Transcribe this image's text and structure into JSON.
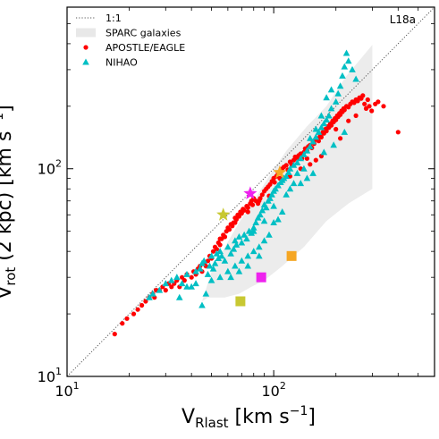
{
  "chart_data": {
    "type": "scatter",
    "xscale": "log",
    "yscale": "log",
    "xlim": [
      10,
      600
    ],
    "ylim": [
      10,
      600
    ],
    "x_ticks": [
      {
        "value": 10,
        "label": "10",
        "exp": "1"
      },
      {
        "value": 100,
        "label": "10",
        "exp": "2"
      }
    ],
    "y_ticks": [
      {
        "value": 10,
        "label": "10",
        "exp": "1"
      },
      {
        "value": 100,
        "label": "10",
        "exp": "2"
      }
    ],
    "xlabel": {
      "main": "V",
      "sub": "Rlast",
      "unit": " [km s",
      "sup": "−1",
      "close": "]"
    },
    "ylabel": {
      "main": "V",
      "sub": "rot",
      "unit": " (2 kpc) [km s",
      "sup": "−1",
      "close": "]"
    },
    "corner_label": "L18a",
    "legend": {
      "position": "top-left",
      "entries": [
        {
          "label": "1:1",
          "marker": "dotted-line",
          "color": "#555555"
        },
        {
          "label": "SPARC galaxies",
          "marker": "shaded-band",
          "color": "#e8e8e8"
        },
        {
          "label": "APOSTLE/EAGLE",
          "marker": "circle",
          "color": "#ff0000"
        },
        {
          "label": "NIHAO",
          "marker": "triangle",
          "color": "#00bfc4"
        }
      ]
    },
    "one_to_one_line": {
      "x": [
        10,
        600
      ],
      "y": [
        10,
        600
      ],
      "color": "#555555"
    },
    "sparc_band": {
      "color": "#ececec",
      "polygon": [
        [
          45,
          23
        ],
        [
          48,
          24
        ],
        [
          58,
          24
        ],
        [
          68,
          25
        ],
        [
          78,
          27
        ],
        [
          90,
          29
        ],
        [
          110,
          34
        ],
        [
          140,
          42
        ],
        [
          180,
          56
        ],
        [
          230,
          68
        ],
        [
          300,
          80
        ],
        [
          300,
          395
        ],
        [
          225,
          280
        ],
        [
          180,
          200
        ],
        [
          145,
          160
        ],
        [
          115,
          122
        ],
        [
          95,
          92
        ],
        [
          80,
          70
        ],
        [
          68,
          55
        ],
        [
          58,
          42
        ],
        [
          50,
          32
        ]
      ]
    },
    "series": [
      {
        "name": "APOSTLE/EAGLE",
        "marker": "circle",
        "color": "#ff0000",
        "points": [
          [
            17,
            16
          ],
          [
            18.5,
            18
          ],
          [
            19.5,
            19
          ],
          [
            21,
            20
          ],
          [
            22,
            21
          ],
          [
            23,
            22
          ],
          [
            24,
            23
          ],
          [
            25,
            24
          ],
          [
            26,
            25
          ],
          [
            26.5,
            24
          ],
          [
            27,
            26
          ],
          [
            28,
            26
          ],
          [
            29,
            27
          ],
          [
            30,
            26
          ],
          [
            31,
            28
          ],
          [
            32,
            27
          ],
          [
            33,
            28
          ],
          [
            34,
            29
          ],
          [
            35,
            27
          ],
          [
            36,
            30
          ],
          [
            37,
            29
          ],
          [
            38,
            31
          ],
          [
            40,
            30
          ],
          [
            41,
            32
          ],
          [
            42,
            31
          ],
          [
            43,
            33
          ],
          [
            44,
            34
          ],
          [
            45,
            32
          ],
          [
            46,
            35
          ],
          [
            47,
            34
          ],
          [
            48,
            36
          ],
          [
            49,
            38
          ],
          [
            50,
            37
          ],
          [
            51,
            40
          ],
          [
            52,
            42
          ],
          [
            53,
            41
          ],
          [
            54,
            44
          ],
          [
            55,
            43
          ],
          [
            56,
            46
          ],
          [
            57,
            48
          ],
          [
            58,
            47
          ],
          [
            59,
            50
          ],
          [
            60,
            52
          ],
          [
            61,
            51
          ],
          [
            62,
            54
          ],
          [
            63,
            53
          ],
          [
            64,
            55
          ],
          [
            65,
            58
          ],
          [
            66,
            57
          ],
          [
            67,
            60
          ],
          [
            68,
            59
          ],
          [
            69,
            62
          ],
          [
            70,
            61
          ],
          [
            71,
            64
          ],
          [
            72,
            63
          ],
          [
            74,
            66
          ],
          [
            75,
            65
          ],
          [
            77,
            68
          ],
          [
            78,
            70
          ],
          [
            79,
            67
          ],
          [
            80,
            72
          ],
          [
            82,
            70
          ],
          [
            84,
            68
          ],
          [
            86,
            72
          ],
          [
            88,
            75
          ],
          [
            90,
            78
          ],
          [
            92,
            80
          ],
          [
            94,
            82
          ],
          [
            96,
            84
          ],
          [
            98,
            87
          ],
          [
            100,
            90
          ],
          [
            101,
            86
          ],
          [
            103,
            92
          ],
          [
            105,
            95
          ],
          [
            107,
            90
          ],
          [
            108,
            98
          ],
          [
            110,
            100
          ],
          [
            112,
            102
          ],
          [
            115,
            104
          ],
          [
            117,
            99
          ],
          [
            120,
            108
          ],
          [
            122,
            105
          ],
          [
            125,
            110
          ],
          [
            127,
            114
          ],
          [
            130,
            112
          ],
          [
            132,
            116
          ],
          [
            135,
            118
          ],
          [
            137,
            112
          ],
          [
            140,
            120
          ],
          [
            142,
            125
          ],
          [
            145,
            122
          ],
          [
            147,
            128
          ],
          [
            150,
            130
          ],
          [
            153,
            126
          ],
          [
            155,
            135
          ],
          [
            157,
            132
          ],
          [
            160,
            138
          ],
          [
            163,
            140
          ],
          [
            165,
            136
          ],
          [
            168,
            145
          ],
          [
            170,
            142
          ],
          [
            173,
            150
          ],
          [
            175,
            148
          ],
          [
            178,
            155
          ],
          [
            180,
            152
          ],
          [
            183,
            160
          ],
          [
            185,
            158
          ],
          [
            188,
            165
          ],
          [
            190,
            162
          ],
          [
            193,
            170
          ],
          [
            195,
            168
          ],
          [
            198,
            175
          ],
          [
            200,
            172
          ],
          [
            203,
            180
          ],
          [
            205,
            178
          ],
          [
            208,
            185
          ],
          [
            210,
            182
          ],
          [
            213,
            190
          ],
          [
            215,
            188
          ],
          [
            218,
            195
          ],
          [
            220,
            192
          ],
          [
            225,
            200
          ],
          [
            230,
            198
          ],
          [
            235,
            205
          ],
          [
            240,
            210
          ],
          [
            245,
            208
          ],
          [
            250,
            215
          ],
          [
            255,
            212
          ],
          [
            260,
            220
          ],
          [
            265,
            218
          ],
          [
            270,
            225
          ],
          [
            275,
            205
          ],
          [
            280,
            195
          ],
          [
            285,
            215
          ],
          [
            290,
            200
          ],
          [
            298,
            190
          ],
          [
            310,
            205
          ],
          [
            320,
            210
          ],
          [
            340,
            200
          ],
          [
            120,
            92
          ],
          [
            110,
            88
          ],
          [
            95,
            74
          ],
          [
            85,
            70
          ],
          [
            75,
            62
          ],
          [
            65,
            55
          ],
          [
            55,
            46
          ],
          [
            150,
            105
          ],
          [
            160,
            110
          ],
          [
            170,
            115
          ],
          [
            135,
            100
          ],
          [
            145,
            112
          ],
          [
            200,
            155
          ],
          [
            210,
            140
          ],
          [
            230,
            170
          ],
          [
            250,
            180
          ],
          [
            400,
            150
          ]
        ]
      },
      {
        "name": "NIHAO",
        "marker": "triangle",
        "color": "#00bfc4",
        "points": [
          [
            25,
            24
          ],
          [
            26,
            25
          ],
          [
            28,
            26
          ],
          [
            30,
            28
          ],
          [
            32,
            29
          ],
          [
            34,
            30
          ],
          [
            36,
            28
          ],
          [
            38,
            31
          ],
          [
            40,
            27
          ],
          [
            42,
            32
          ],
          [
            44,
            33
          ],
          [
            45,
            35
          ],
          [
            46,
            36
          ],
          [
            47,
            25
          ],
          [
            48,
            31
          ],
          [
            49,
            34
          ],
          [
            50,
            38
          ],
          [
            51,
            33
          ],
          [
            52,
            35
          ],
          [
            53,
            39
          ],
          [
            54,
            37
          ],
          [
            55,
            40
          ],
          [
            56,
            38
          ],
          [
            58,
            36
          ],
          [
            60,
            42
          ],
          [
            62,
            39
          ],
          [
            64,
            41
          ],
          [
            65,
            45
          ],
          [
            66,
            43
          ],
          [
            68,
            47
          ],
          [
            70,
            44
          ],
          [
            72,
            48
          ],
          [
            74,
            46
          ],
          [
            76,
            50
          ],
          [
            78,
            49
          ],
          [
            80,
            52
          ],
          [
            82,
            55
          ],
          [
            84,
            58
          ],
          [
            86,
            60
          ],
          [
            88,
            63
          ],
          [
            90,
            67
          ],
          [
            92,
            65
          ],
          [
            94,
            70
          ],
          [
            96,
            72
          ],
          [
            98,
            75
          ],
          [
            100,
            78
          ],
          [
            102,
            80
          ],
          [
            105,
            83
          ],
          [
            108,
            86
          ],
          [
            110,
            88
          ],
          [
            112,
            90
          ],
          [
            115,
            92
          ],
          [
            118,
            96
          ],
          [
            120,
            100
          ],
          [
            125,
            104
          ],
          [
            130,
            107
          ],
          [
            135,
            112
          ],
          [
            140,
            117
          ],
          [
            145,
            122
          ],
          [
            150,
            128
          ],
          [
            155,
            135
          ],
          [
            160,
            142
          ],
          [
            165,
            150
          ],
          [
            170,
            158
          ],
          [
            175,
            165
          ],
          [
            180,
            172
          ],
          [
            185,
            180
          ],
          [
            190,
            195
          ],
          [
            200,
            210
          ],
          [
            205,
            230
          ],
          [
            210,
            250
          ],
          [
            215,
            280
          ],
          [
            220,
            310
          ],
          [
            225,
            360
          ],
          [
            230,
            330
          ],
          [
            240,
            300
          ],
          [
            250,
            270
          ],
          [
            190,
            240
          ],
          [
            180,
            220
          ],
          [
            170,
            180
          ],
          [
            160,
            155
          ],
          [
            150,
            140
          ],
          [
            145,
            90
          ],
          [
            140,
            100
          ],
          [
            130,
            95
          ],
          [
            125,
            85
          ],
          [
            120,
            80
          ],
          [
            110,
            62
          ],
          [
            105,
            57
          ],
          [
            100,
            55
          ],
          [
            95,
            48
          ],
          [
            90,
            45
          ],
          [
            85,
            42
          ],
          [
            80,
            40
          ],
          [
            75,
            38
          ],
          [
            70,
            36
          ],
          [
            65,
            34
          ],
          [
            60,
            32
          ],
          [
            55,
            30
          ],
          [
            50,
            29
          ],
          [
            45,
            22
          ],
          [
            42,
            28
          ],
          [
            38,
            27
          ],
          [
            35,
            24
          ],
          [
            62,
            30
          ],
          [
            68,
            32
          ],
          [
            75,
            34
          ],
          [
            85,
            38
          ],
          [
            115,
            75
          ],
          [
            135,
            85
          ],
          [
            155,
            95
          ],
          [
            175,
            120
          ],
          [
            195,
            130
          ],
          [
            220,
            150
          ],
          [
            100,
            66
          ],
          [
            90,
            56
          ],
          [
            80,
            50
          ]
        ]
      },
      {
        "name": "",
        "marker": "star",
        "points": [
          {
            "x": 57,
            "y": 60,
            "color": "#c8c832"
          },
          {
            "x": 77,
            "y": 76,
            "color": "#ee22ee"
          },
          {
            "x": 107,
            "y": 96,
            "color": "#f5a623"
          }
        ]
      },
      {
        "name": "",
        "marker": "square",
        "points": [
          {
            "x": 69,
            "y": 23,
            "color": "#c8c832"
          },
          {
            "x": 87,
            "y": 30,
            "color": "#ee22ee"
          },
          {
            "x": 122,
            "y": 38,
            "color": "#f5a623"
          }
        ]
      }
    ]
  }
}
